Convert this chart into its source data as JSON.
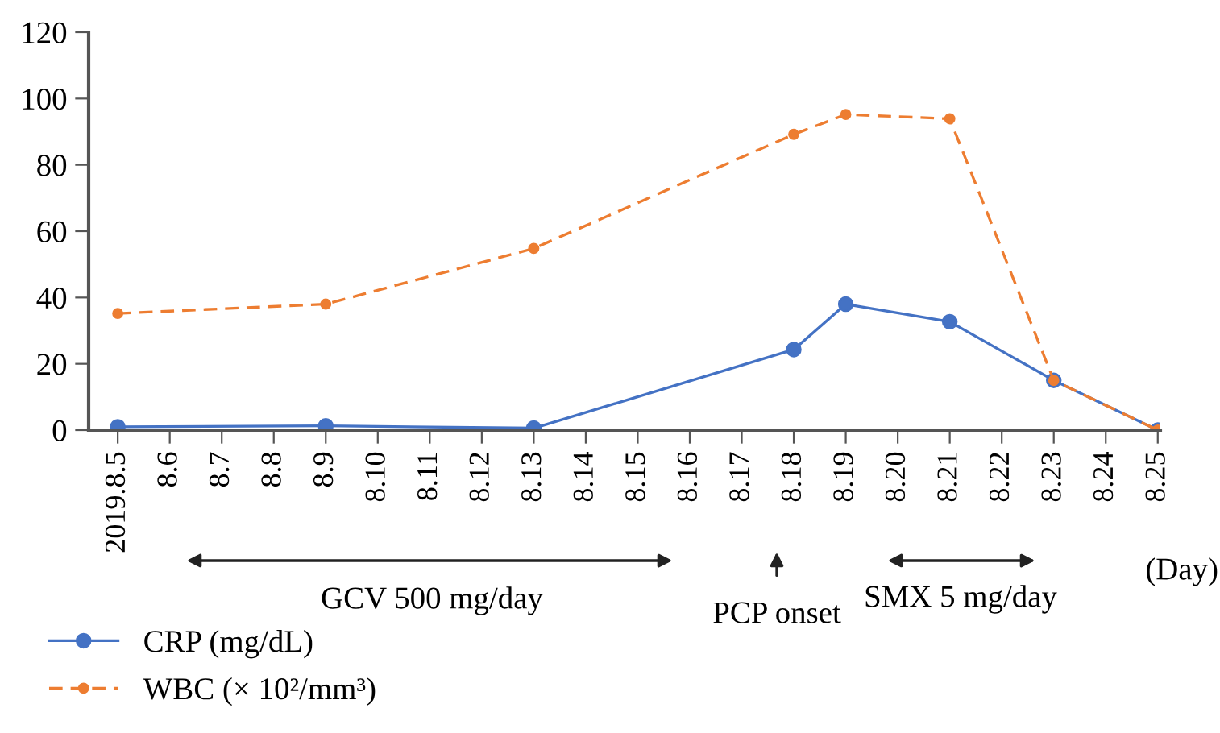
{
  "chart_data": {
    "type": "line",
    "categories": [
      "2019.8.5",
      "8.6",
      "8.7",
      "8.8",
      "8.9",
      "8.10",
      "8.11",
      "8.12",
      "8.13",
      "8.14",
      "8.15",
      "8.16",
      "8.17",
      "8.18",
      "8.19",
      "8.20",
      "8.21",
      "8.22",
      "8.23",
      "8.24",
      "8.25"
    ],
    "series": [
      {
        "name": "CRP (mg/dL)",
        "color": "#4472c4",
        "line_style": "solid",
        "values": [
          1,
          null,
          null,
          null,
          1.3,
          null,
          null,
          null,
          0.6,
          null,
          null,
          null,
          null,
          24.3,
          38,
          null,
          32.7,
          null,
          15,
          null,
          0
        ]
      },
      {
        "name": "WBC (× 10²/mm³)",
        "color": "#ed7d31",
        "line_style": "dashed",
        "values": [
          35.2,
          null,
          null,
          null,
          38,
          null,
          null,
          null,
          54.8,
          null,
          null,
          null,
          null,
          89.2,
          95.2,
          null,
          93.9,
          null,
          15,
          null,
          0
        ]
      }
    ],
    "ylim": [
      0,
      120
    ],
    "yticks": [
      0,
      20,
      40,
      60,
      80,
      100,
      120
    ],
    "marker": "circle",
    "grid": false,
    "legend": "bottom left",
    "annotations": [
      "GCV 500 mg/day",
      "PCP onset",
      "SMX 5 mg/day",
      "(Day)"
    ]
  }
}
